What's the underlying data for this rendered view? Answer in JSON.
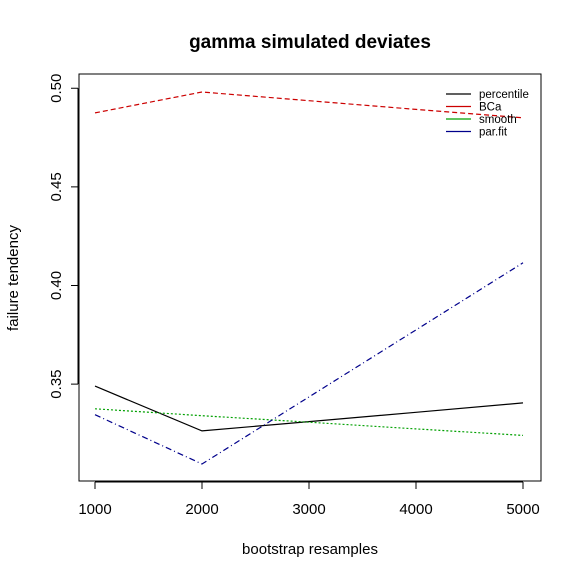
{
  "chart_data": {
    "type": "line",
    "title": "gamma simulated deviates",
    "xlabel": "bootstrap resamples",
    "ylabel": "failure tendency",
    "x": [
      1000,
      2000,
      3000,
      4000,
      5000
    ],
    "x_ticks": [
      "1000",
      "2000",
      "3000",
      "4000",
      "5000"
    ],
    "y_ticks": [
      "0.35",
      "0.40",
      "0.45",
      "0.50"
    ],
    "y_tick_values": [
      0.35,
      0.4,
      0.45,
      0.5
    ],
    "xlim": [
      1000,
      5000
    ],
    "ylim": [
      0.3095,
      0.4981
    ],
    "grid": false,
    "legend_position": "top-right",
    "series": [
      {
        "name": "percentile",
        "color": "#000000",
        "dash": "solid",
        "values": [
          0.349,
          0.3263,
          0.331,
          0.3357,
          0.3405
        ]
      },
      {
        "name": "BCa",
        "color": "#cc0000",
        "dash": "dashed",
        "values": [
          0.4875,
          0.4981,
          0.4937,
          0.4893,
          0.485
        ]
      },
      {
        "name": "smooth",
        "color": "#00a000",
        "dash": "dotted",
        "values": [
          0.3375,
          0.334,
          0.3307,
          0.3273,
          0.324
        ]
      },
      {
        "name": "par.fit",
        "color": "#00008b",
        "dash": "dotdash",
        "values": [
          0.3345,
          0.3095,
          0.3435,
          0.3775,
          0.4115
        ]
      }
    ]
  }
}
